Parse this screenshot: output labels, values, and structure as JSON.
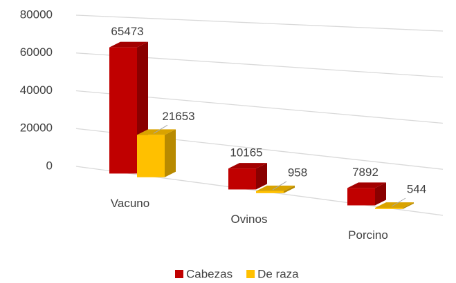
{
  "chart_data": {
    "type": "bar3d",
    "categories": [
      "Vacuno",
      "Ovinos",
      "Porcino"
    ],
    "series": [
      {
        "name": "Cabezas",
        "color": "#c00000",
        "values": [
          65473,
          10165,
          7892
        ]
      },
      {
        "name": "De raza",
        "color": "#ffc000",
        "values": [
          21653,
          958,
          544
        ]
      }
    ],
    "ylim": [
      0,
      80000
    ],
    "yticks": [
      0,
      20000,
      40000,
      60000,
      80000
    ],
    "grid": true,
    "legend": "bottom"
  }
}
